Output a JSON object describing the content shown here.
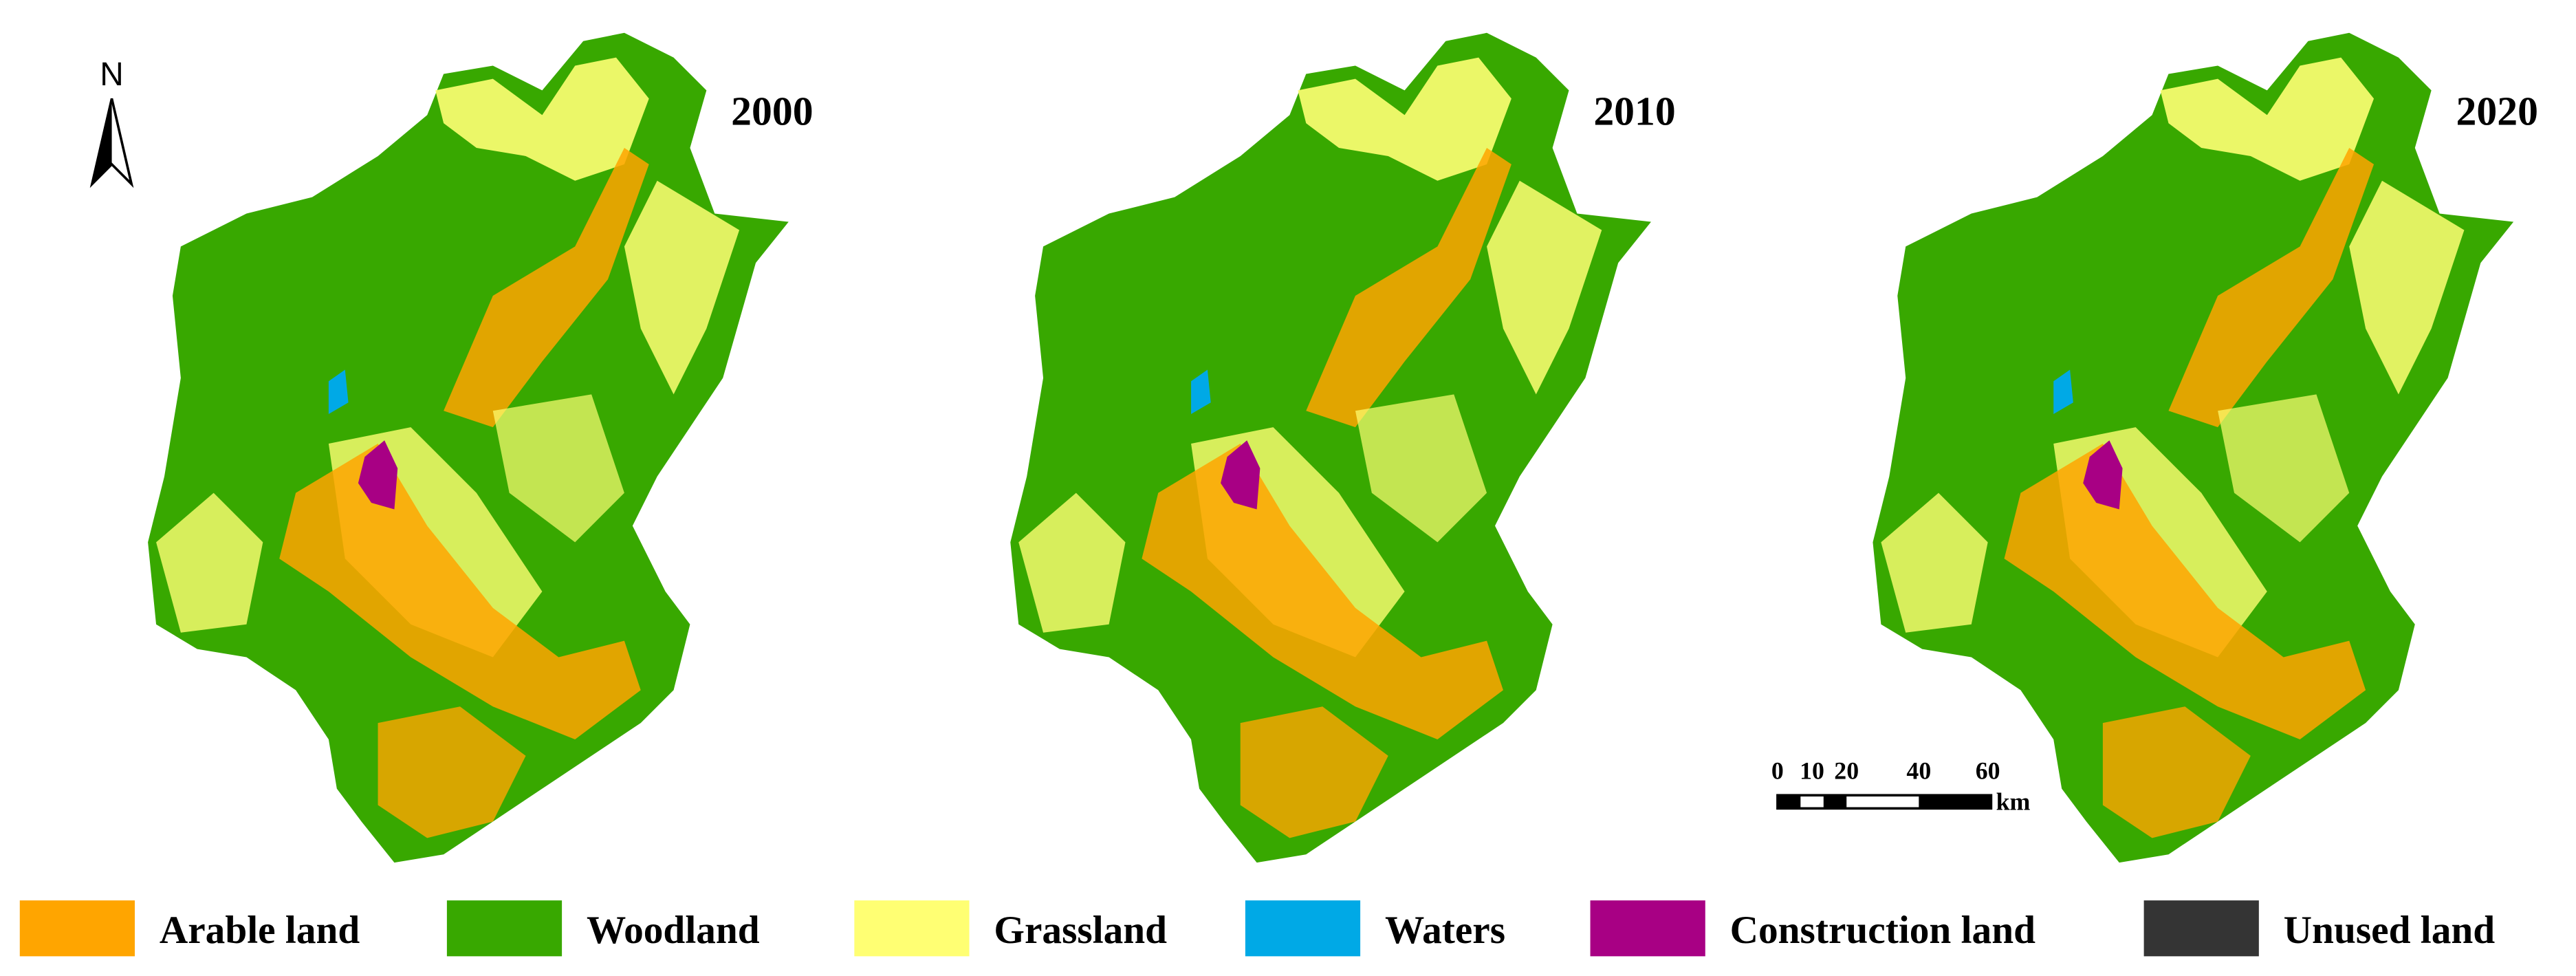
{
  "north_arrow": {
    "label": "N"
  },
  "panels": [
    {
      "year": "2000"
    },
    {
      "year": "2010"
    },
    {
      "year": "2020"
    }
  ],
  "scale_bar": {
    "ticks": [
      "0",
      "10",
      "20",
      "40",
      "60"
    ],
    "unit": "km"
  },
  "legend": [
    {
      "label": "Arable land",
      "color": "#ffa500"
    },
    {
      "label": "Woodland",
      "color": "#38a800"
    },
    {
      "label": "Grassland",
      "color": "#ffff73"
    },
    {
      "label": "Waters",
      "color": "#00a9e6"
    },
    {
      "label": "Construction land",
      "color": "#a80084"
    },
    {
      "label": "Unused land",
      "color": "#343434"
    }
  ]
}
